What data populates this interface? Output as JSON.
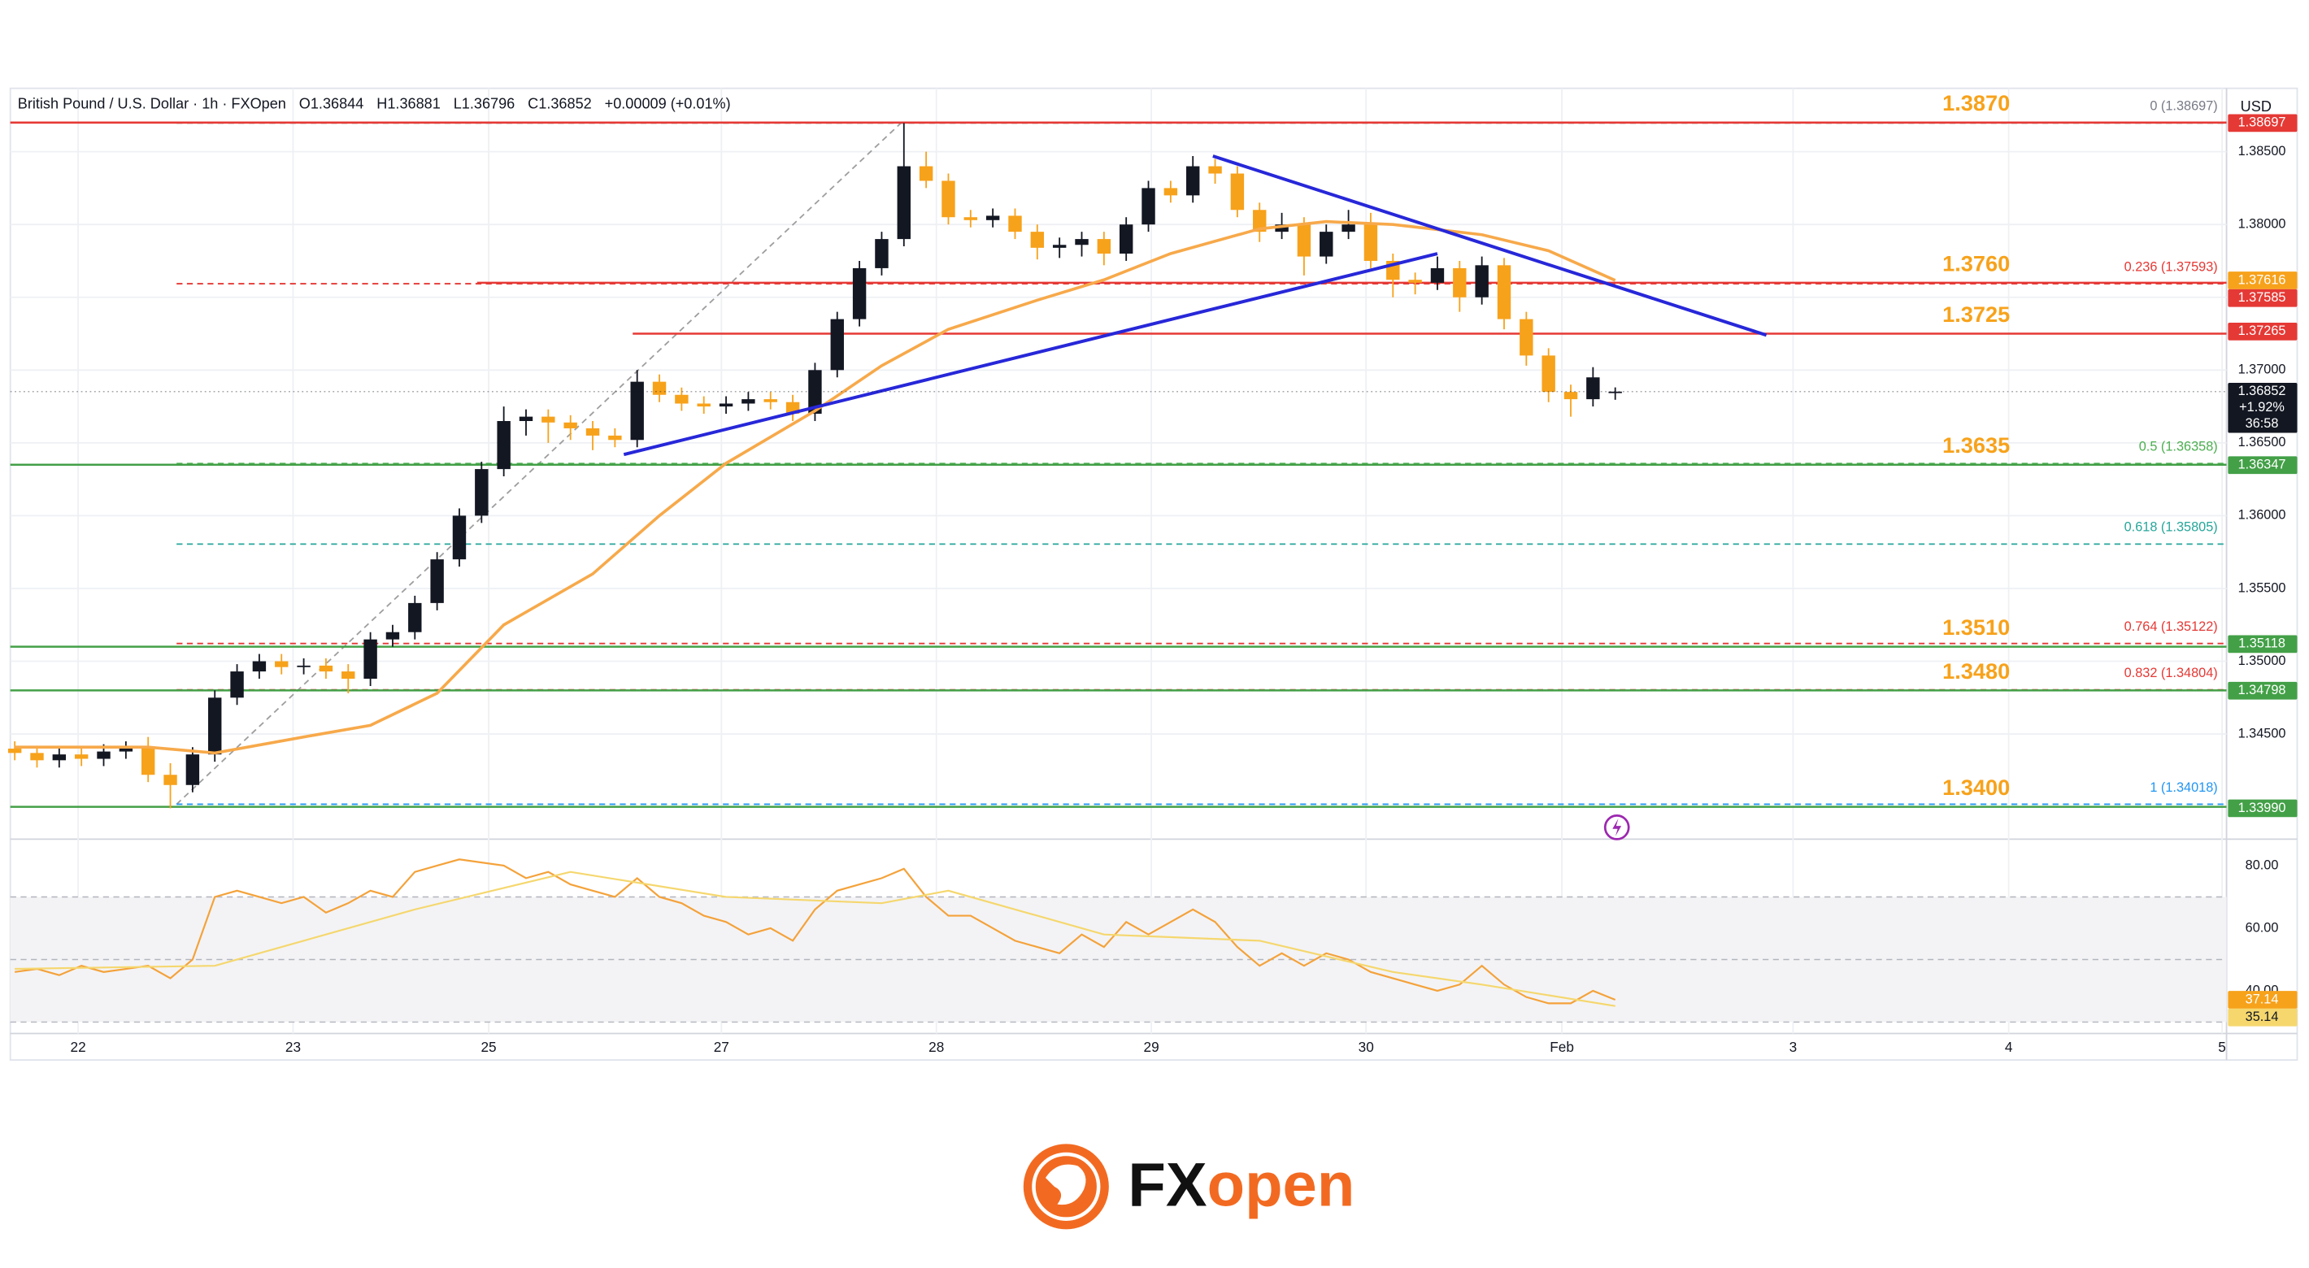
{
  "chart_data": [
    {
      "type": "candlestick",
      "header": {
        "symbol": "British Pound / U.S. Dollar · 1h · FXOpen",
        "open": "O1.36844",
        "high": "H1.36881",
        "low": "L1.36796",
        "close": "C1.36852",
        "change": "+0.00009 (+0.01%)"
      },
      "currency": "USD",
      "up_color": "#131722",
      "down_color": "#f7a21b",
      "xlim": [
        -0.2,
        99.5
      ],
      "xticks": [
        {
          "value": 2.85,
          "label": "22"
        },
        {
          "value": 12.52,
          "label": "23"
        },
        {
          "value": 21.32,
          "label": "25"
        },
        {
          "value": 31.79,
          "label": "27"
        },
        {
          "value": 41.46,
          "label": "28"
        },
        {
          "value": 51.13,
          "label": "29"
        },
        {
          "value": 60.79,
          "label": "30"
        },
        {
          "value": 69.6,
          "label": "Feb"
        },
        {
          "value": 80.0,
          "label": "3"
        },
        {
          "value": 89.7,
          "label": "4"
        },
        {
          "value": 99.3,
          "label": "5"
        }
      ],
      "ylim": [
        1.3395,
        1.38915
      ],
      "yticks": [
        {
          "value": 1.345,
          "label": "1.34500"
        },
        {
          "value": 1.35,
          "label": "1.35000"
        },
        {
          "value": 1.355,
          "label": "1.35500"
        },
        {
          "value": 1.36,
          "label": "1.36000"
        },
        {
          "value": 1.365,
          "label": "1.36500"
        },
        {
          "value": 1.37,
          "label": "1.37000"
        },
        {
          "value": 1.375,
          "label": "1.37500"
        },
        {
          "value": 1.38,
          "label": "1.38000"
        },
        {
          "value": 1.385,
          "label": "1.38500"
        }
      ],
      "grid": true,
      "open": [
        1.344,
        1.3437,
        1.3432,
        1.3436,
        1.3433,
        1.3438,
        1.344,
        1.3422,
        1.3415,
        1.3436,
        1.3475,
        1.3493,
        1.35,
        1.3496,
        1.3497,
        1.3493,
        1.3488,
        1.3515,
        1.352,
        1.354,
        1.357,
        1.36,
        1.3632,
        1.3665,
        1.3668,
        1.3664,
        1.366,
        1.3655,
        1.3652,
        1.3692,
        1.3683,
        1.3677,
        1.3675,
        1.3677,
        1.368,
        1.3678,
        1.367,
        1.37,
        1.3735,
        1.377,
        1.379,
        1.384,
        1.383,
        1.3805,
        1.3803,
        1.3806,
        1.3795,
        1.3784,
        1.3786,
        1.379,
        1.378,
        1.38,
        1.3825,
        1.382,
        1.384,
        1.3835,
        1.381,
        1.3795,
        1.38,
        1.3778,
        1.3795,
        1.38,
        1.3775,
        1.3762,
        1.376,
        1.377,
        1.375,
        1.3772,
        1.3735,
        1.371,
        1.3685,
        1.368,
        1.36844
      ],
      "high": [
        1.3445,
        1.3442,
        1.3441,
        1.3441,
        1.3443,
        1.3445,
        1.3448,
        1.343,
        1.3441,
        1.348,
        1.3498,
        1.3505,
        1.3505,
        1.3502,
        1.3502,
        1.3498,
        1.352,
        1.3525,
        1.3545,
        1.3575,
        1.3605,
        1.3637,
        1.3675,
        1.3673,
        1.3673,
        1.3669,
        1.3665,
        1.366,
        1.37,
        1.3697,
        1.3688,
        1.3682,
        1.3682,
        1.3685,
        1.3685,
        1.3683,
        1.3705,
        1.374,
        1.3775,
        1.3795,
        1.38697,
        1.385,
        1.3835,
        1.381,
        1.3811,
        1.3811,
        1.38,
        1.3791,
        1.3795,
        1.3795,
        1.3805,
        1.383,
        1.383,
        1.3847,
        1.3845,
        1.384,
        1.3815,
        1.3808,
        1.3805,
        1.38,
        1.381,
        1.3808,
        1.378,
        1.3767,
        1.3778,
        1.3775,
        1.3778,
        1.3777,
        1.374,
        1.3715,
        1.369,
        1.3702,
        1.36881
      ],
      "low": [
        1.3432,
        1.3427,
        1.3427,
        1.3428,
        1.3428,
        1.3433,
        1.3417,
        1.3399,
        1.341,
        1.3431,
        1.347,
        1.3488,
        1.3491,
        1.3491,
        1.3488,
        1.3478,
        1.3483,
        1.351,
        1.3515,
        1.3535,
        1.3565,
        1.3595,
        1.3627,
        1.3655,
        1.365,
        1.3652,
        1.3645,
        1.3647,
        1.3647,
        1.3678,
        1.3672,
        1.367,
        1.367,
        1.3672,
        1.3673,
        1.3665,
        1.3665,
        1.3695,
        1.373,
        1.3765,
        1.3785,
        1.3825,
        1.38,
        1.3798,
        1.3798,
        1.379,
        1.3776,
        1.3777,
        1.3778,
        1.3772,
        1.3775,
        1.3795,
        1.3815,
        1.3815,
        1.3828,
        1.3805,
        1.3788,
        1.379,
        1.3765,
        1.3773,
        1.379,
        1.377,
        1.375,
        1.3752,
        1.3755,
        1.374,
        1.3745,
        1.3728,
        1.3703,
        1.3678,
        1.3668,
        1.3675,
        1.36796
      ],
      "close": [
        1.3437,
        1.3432,
        1.3436,
        1.3433,
        1.3438,
        1.344,
        1.3422,
        1.3415,
        1.3436,
        1.3475,
        1.3493,
        1.35,
        1.3496,
        1.3497,
        1.3493,
        1.3488,
        1.3515,
        1.352,
        1.354,
        1.357,
        1.36,
        1.3632,
        1.3665,
        1.3668,
        1.3664,
        1.366,
        1.3655,
        1.3652,
        1.3692,
        1.3683,
        1.3677,
        1.3675,
        1.3677,
        1.368,
        1.3678,
        1.367,
        1.37,
        1.3735,
        1.377,
        1.379,
        1.384,
        1.383,
        1.3805,
        1.3803,
        1.3806,
        1.3795,
        1.3784,
        1.3786,
        1.379,
        1.378,
        1.38,
        1.3825,
        1.382,
        1.384,
        1.3835,
        1.381,
        1.3795,
        1.38,
        1.3778,
        1.3795,
        1.38,
        1.3775,
        1.3762,
        1.376,
        1.377,
        1.375,
        1.3772,
        1.3735,
        1.371,
        1.3685,
        1.368,
        1.3695,
        1.36852
      ],
      "moving_average": {
        "color": "#f7a94a",
        "x": [
          0,
          6,
          9,
          13,
          16,
          19,
          22,
          26,
          29,
          32,
          36,
          39,
          42,
          46,
          49,
          52,
          56,
          59,
          62,
          66,
          69,
          72
        ],
        "values": [
          1.3441,
          1.3441,
          1.3437,
          1.3448,
          1.3456,
          1.3478,
          1.3525,
          1.356,
          1.36,
          1.3636,
          1.3672,
          1.3703,
          1.3728,
          1.3748,
          1.3762,
          1.378,
          1.3797,
          1.3802,
          1.38,
          1.3793,
          1.3782,
          1.37616
        ]
      },
      "trendlines": [
        {
          "color": "#2727d9",
          "x": [
            53.9,
            78.8
          ],
          "values": [
            1.3847,
            1.3724
          ]
        },
        {
          "color": "#2727d9",
          "x": [
            27.4,
            64.0
          ],
          "values": [
            1.3642,
            1.378
          ]
        }
      ],
      "levels": [
        {
          "value": 1.387,
          "label": "1.3870",
          "color": "#e53935"
        },
        {
          "value": 1.376,
          "label": "1.3760",
          "color": "#e53935",
          "from": 20.8
        },
        {
          "value": 1.3725,
          "label": "1.3725",
          "color": "#e53935",
          "from": 27.8
        },
        {
          "value": 1.3635,
          "label": "1.3635",
          "color": "#43a047"
        },
        {
          "value": 1.351,
          "label": "1.3510",
          "color": "#43a047"
        },
        {
          "value": 1.348,
          "label": "1.3480",
          "color": "#43a047"
        },
        {
          "value": 1.34,
          "label": "1.3400",
          "color": "#43a047"
        }
      ],
      "level_label_color": "#f7a21b",
      "fib": {
        "color": "#9e9e9e",
        "x": [
          7.28,
          39.87
        ],
        "values": [
          1.34018,
          1.38697
        ],
        "levels": [
          {
            "value": 1.38697,
            "label": "0 (1.38697)",
            "color": "#787b86"
          },
          {
            "value": 1.37593,
            "label": "0.236 (1.37593)",
            "color": "#e53935"
          },
          {
            "value": 1.36358,
            "label": "0.5 (1.36358)",
            "color": "#4caf50"
          },
          {
            "value": 1.35805,
            "label": "0.618 (1.35805)",
            "color": "#26a69a"
          },
          {
            "value": 1.35122,
            "label": "0.764 (1.35122)",
            "color": "#e53935"
          },
          {
            "value": 1.34804,
            "label": "0.832 (1.34804)",
            "color": "#e53935"
          },
          {
            "value": 1.34018,
            "label": "1 (1.34018)",
            "color": "#2196f3"
          }
        ]
      },
      "price_badges": [
        {
          "value": 1.38697,
          "label": "1.38697",
          "color": "#e53935"
        },
        {
          "value": 1.37616,
          "label": "1.37616",
          "color": "#f7a21b"
        },
        {
          "value": 1.37585,
          "label": "1.37585",
          "color": "#e53935"
        },
        {
          "value": 1.37265,
          "label": "1.37265",
          "color": "#e53935"
        },
        {
          "value": 1.36347,
          "label": "1.36347",
          "color": "#43a047"
        },
        {
          "value": 1.35118,
          "label": "1.35118",
          "color": "#43a047"
        },
        {
          "value": 1.34798,
          "label": "1.34798",
          "color": "#43a047"
        },
        {
          "value": 1.3399,
          "label": "1.33990",
          "color": "#43a047"
        }
      ],
      "current": {
        "value": 1.36852,
        "label": "1.36852",
        "change": "+1.92%",
        "countdown": "36:58",
        "color": "#131722"
      }
    },
    {
      "type": "line",
      "xlim": [
        -0.2,
        99.5
      ],
      "ylim": [
        27.3,
        84.7
      ],
      "yticks": [
        {
          "value": 40,
          "label": "40.00"
        },
        {
          "value": 60,
          "label": "60.00"
        },
        {
          "value": 80,
          "label": "80.00"
        }
      ],
      "bands": [
        30,
        50,
        70
      ],
      "series": [
        {
          "color": "#f4a23a",
          "values": [
            46,
            47,
            45,
            48,
            46,
            47,
            48,
            44,
            50,
            70,
            72,
            70,
            68,
            70,
            65,
            68,
            72,
            70,
            78,
            80,
            82,
            81,
            80,
            76,
            78,
            74,
            72,
            70,
            76,
            70,
            68,
            64,
            62,
            58,
            60,
            56,
            66,
            72,
            74,
            76,
            79,
            70,
            64,
            64,
            60,
            56,
            54,
            52,
            58,
            54,
            62,
            58,
            62,
            66,
            62,
            54,
            48,
            52,
            48,
            52,
            50,
            46,
            44,
            42,
            40,
            42,
            48,
            42,
            38,
            36,
            36,
            40,
            37.14
          ]
        },
        {
          "color": "#f5d76e",
          "x": [
            0,
            9,
            18,
            25,
            32,
            39,
            42,
            49,
            56,
            62,
            66,
            72
          ],
          "values": [
            47,
            48,
            66,
            78,
            70,
            68,
            72,
            58,
            56,
            46,
            42,
            35.14
          ]
        }
      ],
      "badges": [
        {
          "value": 37.14,
          "label": "37.14",
          "color": "#f7a21b"
        },
        {
          "value": 35.14,
          "label": "35.14",
          "color": "#f5d76e"
        }
      ]
    }
  ],
  "logo": {
    "fx": "FX",
    "open": "open"
  }
}
